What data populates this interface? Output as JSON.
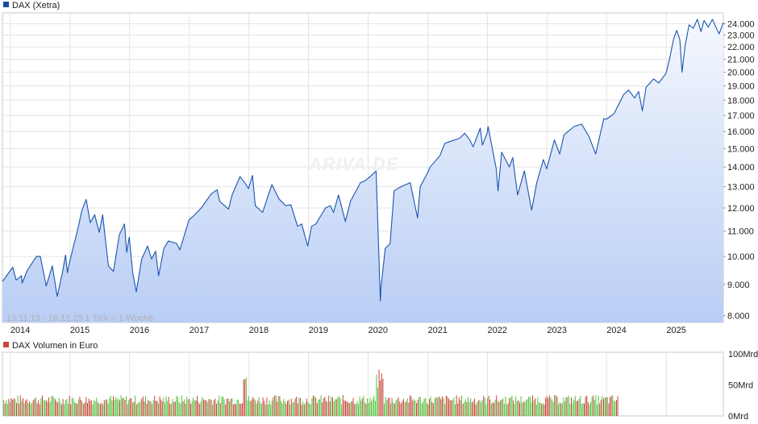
{
  "chart_data": [
    {
      "type": "area",
      "legend": "DAX (Xetra)",
      "watermark": "ARIVA.DE",
      "range_note": "13.11.13 - 16.12.25    1 Tick = 1 Woche",
      "x_tick_labels": [
        "2014",
        "2015",
        "2016",
        "2017",
        "2018",
        "2019",
        "2020",
        "2021",
        "2022",
        "2023",
        "2024",
        "2025"
      ],
      "y_tick_labels": [
        "8.000",
        "9.000",
        "10.000",
        "11.000",
        "12.000",
        "13.000",
        "14.000",
        "15.000",
        "16.000",
        "17.000",
        "18.000",
        "19.000",
        "20.000",
        "21.000",
        "22.000",
        "23.000",
        "24.000"
      ],
      "y_scale": "log",
      "ylim": [
        7800,
        25000
      ],
      "grid": true,
      "colors": {
        "line": "#1a55b0",
        "fill_top": "#f4f7fd",
        "fill_bottom": "#b9cef5",
        "legend_box": "#1a4a9c"
      },
      "series": [
        {
          "name": "DAX (Xetra)",
          "points": [
            [
              "2013-11-13",
              9100
            ],
            [
              "2014-01-15",
              9600
            ],
            [
              "2014-02-05",
              9150
            ],
            [
              "2014-03-10",
              9300
            ],
            [
              "2014-03-14",
              9050
            ],
            [
              "2014-04-15",
              9500
            ],
            [
              "2014-06-10",
              10000
            ],
            [
              "2014-07-03",
              10000
            ],
            [
              "2014-08-08",
              8950
            ],
            [
              "2014-09-15",
              9650
            ],
            [
              "2014-10-15",
              8600
            ],
            [
              "2014-11-15",
              9400
            ],
            [
              "2014-12-05",
              10050
            ],
            [
              "2014-12-16",
              9400
            ],
            [
              "2014-12-30",
              9800
            ],
            [
              "2015-01-15",
              10200
            ],
            [
              "2015-02-15",
              11000
            ],
            [
              "2015-03-15",
              11900
            ],
            [
              "2015-04-10",
              12390
            ],
            [
              "2015-05-05",
              11350
            ],
            [
              "2015-06-01",
              11700
            ],
            [
              "2015-06-29",
              10950
            ],
            [
              "2015-07-20",
              11700
            ],
            [
              "2015-08-24",
              9650
            ],
            [
              "2015-09-24",
              9450
            ],
            [
              "2015-10-30",
              10850
            ],
            [
              "2015-12-01",
              11300
            ],
            [
              "2015-12-14",
              10150
            ],
            [
              "2015-12-30",
              10750
            ],
            [
              "2016-01-20",
              9400
            ],
            [
              "2016-02-11",
              8750
            ],
            [
              "2016-03-15",
              9900
            ],
            [
              "2016-04-20",
              10400
            ],
            [
              "2016-05-15",
              9900
            ],
            [
              "2016-06-08",
              10200
            ],
            [
              "2016-06-27",
              9300
            ],
            [
              "2016-07-29",
              10300
            ],
            [
              "2016-08-25",
              10600
            ],
            [
              "2016-10-15",
              10500
            ],
            [
              "2016-11-04",
              10250
            ],
            [
              "2016-12-30",
              11480
            ],
            [
              "2017-01-20",
              11600
            ],
            [
              "2017-03-15",
              12000
            ],
            [
              "2017-05-15",
              12650
            ],
            [
              "2017-06-20",
              12850
            ],
            [
              "2017-07-06",
              12300
            ],
            [
              "2017-08-29",
              11950
            ],
            [
              "2017-09-20",
              12600
            ],
            [
              "2017-11-07",
              13500
            ],
            [
              "2017-12-15",
              13100
            ],
            [
              "2017-12-29",
              12900
            ],
            [
              "2018-01-23",
              13560
            ],
            [
              "2018-02-09",
              12100
            ],
            [
              "2018-03-26",
              11800
            ],
            [
              "2018-04-30",
              12600
            ],
            [
              "2018-05-22",
              13100
            ],
            [
              "2018-07-06",
              12400
            ],
            [
              "2018-08-15",
              12100
            ],
            [
              "2018-09-15",
              12150
            ],
            [
              "2018-10-26",
              11200
            ],
            [
              "2018-11-20",
              11300
            ],
            [
              "2018-12-27",
              10400
            ],
            [
              "2019-01-20",
              11200
            ],
            [
              "2019-02-15",
              11300
            ],
            [
              "2019-04-15",
              12000
            ],
            [
              "2019-05-15",
              12100
            ],
            [
              "2019-06-03",
              11800
            ],
            [
              "2019-07-04",
              12600
            ],
            [
              "2019-08-15",
              11400
            ],
            [
              "2019-09-15",
              12300
            ],
            [
              "2019-11-15",
              13200
            ],
            [
              "2019-12-15",
              13300
            ],
            [
              "2020-01-20",
              13550
            ],
            [
              "2020-02-19",
              13790
            ],
            [
              "2020-03-16",
              8450
            ],
            [
              "2020-03-20",
              8900
            ],
            [
              "2020-04-15",
              10300
            ],
            [
              "2020-05-15",
              10500
            ],
            [
              "2020-06-08",
              12800
            ],
            [
              "2020-07-20",
              13000
            ],
            [
              "2020-09-15",
              13200
            ],
            [
              "2020-10-30",
              11560
            ],
            [
              "2020-11-15",
              13000
            ],
            [
              "2020-12-30",
              13700
            ],
            [
              "2021-01-15",
              14000
            ],
            [
              "2021-03-15",
              14600
            ],
            [
              "2021-04-15",
              15300
            ],
            [
              "2021-05-15",
              15400
            ],
            [
              "2021-07-15",
              15600
            ],
            [
              "2021-08-15",
              15900
            ],
            [
              "2021-09-15",
              15500
            ],
            [
              "2021-10-05",
              15100
            ],
            [
              "2021-11-18",
              16200
            ],
            [
              "2021-12-01",
              15200
            ],
            [
              "2021-12-30",
              15900
            ],
            [
              "2022-01-05",
              16300
            ],
            [
              "2022-02-24",
              13900
            ],
            [
              "2022-03-07",
              12800
            ],
            [
              "2022-03-29",
              14800
            ],
            [
              "2022-05-15",
              14000
            ],
            [
              "2022-06-05",
              14500
            ],
            [
              "2022-07-05",
              12600
            ],
            [
              "2022-08-15",
              13800
            ],
            [
              "2022-09-29",
              11900
            ],
            [
              "2022-10-30",
              13200
            ],
            [
              "2022-12-10",
              14400
            ],
            [
              "2022-12-30",
              13900
            ],
            [
              "2023-02-15",
              15500
            ],
            [
              "2023-03-20",
              14700
            ],
            [
              "2023-04-15",
              15800
            ],
            [
              "2023-06-15",
              16300
            ],
            [
              "2023-08-01",
              16450
            ],
            [
              "2023-09-15",
              15700
            ],
            [
              "2023-10-26",
              14700
            ],
            [
              "2023-12-15",
              16800
            ],
            [
              "2023-12-30",
              16750
            ],
            [
              "2024-02-15",
              17100
            ],
            [
              "2024-04-15",
              18400
            ],
            [
              "2024-05-15",
              18700
            ],
            [
              "2024-06-20",
              18150
            ],
            [
              "2024-07-15",
              18600
            ],
            [
              "2024-08-07",
              17300
            ],
            [
              "2024-08-30",
              18900
            ],
            [
              "2024-10-15",
              19500
            ],
            [
              "2024-11-15",
              19200
            ],
            [
              "2024-12-30",
              19900
            ],
            [
              "2025-01-20",
              21000
            ],
            [
              "2025-02-15",
              22700
            ],
            [
              "2025-03-05",
              23400
            ],
            [
              "2025-03-25",
              22600
            ],
            [
              "2025-04-07",
              20000
            ],
            [
              "2025-04-25",
              22000
            ],
            [
              "2025-05-20",
              23900
            ],
            [
              "2025-06-15",
              23600
            ],
            [
              "2025-07-10",
              24400
            ],
            [
              "2025-08-01",
              23300
            ],
            [
              "2025-08-20",
              24300
            ],
            [
              "2025-09-15",
              23700
            ],
            [
              "2025-10-10",
              24400
            ],
            [
              "2025-11-20",
              23100
            ],
            [
              "2025-12-16",
              24100
            ]
          ]
        }
      ]
    },
    {
      "type": "bar",
      "legend": "DAX Volumen in Euro",
      "y_tick_labels": [
        "100Mrd",
        "50Mrd",
        "0Mrd"
      ],
      "ylim": [
        0,
        100
      ],
      "colors": {
        "up": "#55c03c",
        "down": "#c8473a",
        "legend_box": "#c8473a"
      }
    }
  ]
}
